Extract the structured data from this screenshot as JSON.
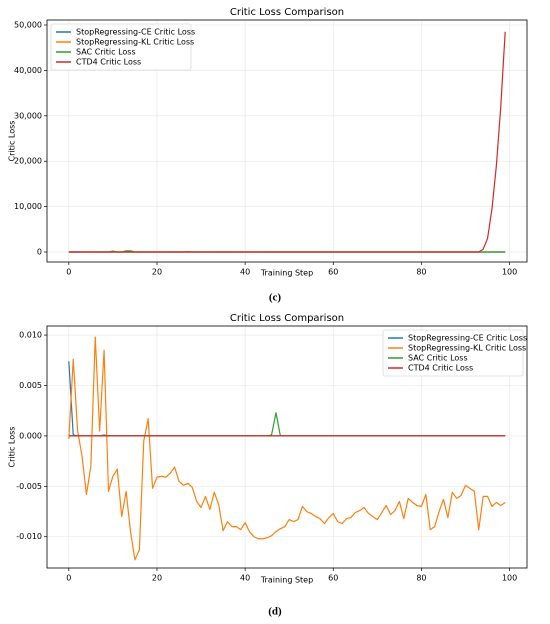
{
  "chart_data": [
    {
      "type": "line",
      "title": "Critic Loss Comparison",
      "xlabel": "Training Step",
      "ylabel": "Critic Loss",
      "caption": "(c)",
      "legend": "upper left",
      "grid": true,
      "xlim": [
        -4.95,
        103.95
      ],
      "xticks": [
        0,
        20,
        40,
        60,
        80,
        100
      ],
      "ylim": [
        -2200,
        51100
      ],
      "yticks": [
        0,
        {
          "value": 10000,
          "label": "10,000"
        },
        {
          "value": 20000,
          "label": "20,000"
        },
        {
          "value": 30000,
          "label": "30,000"
        },
        {
          "value": 40000,
          "label": "40,000"
        },
        {
          "value": 50000,
          "label": "50,000"
        }
      ],
      "x": [
        0,
        1,
        2,
        3,
        4,
        5,
        6,
        7,
        8,
        9,
        10,
        11,
        12,
        13,
        14,
        15,
        16,
        17,
        18,
        19,
        20,
        21,
        22,
        23,
        24,
        25,
        26,
        27,
        28,
        29,
        30,
        31,
        32,
        33,
        34,
        35,
        36,
        37,
        38,
        39,
        40,
        41,
        42,
        43,
        44,
        45,
        46,
        47,
        48,
        49,
        50,
        51,
        52,
        53,
        54,
        55,
        56,
        57,
        58,
        59,
        60,
        61,
        62,
        63,
        64,
        65,
        66,
        67,
        68,
        69,
        70,
        71,
        72,
        73,
        74,
        75,
        76,
        77,
        78,
        79,
        80,
        81,
        82,
        83,
        84,
        85,
        86,
        87,
        88,
        89,
        90,
        91,
        92,
        93,
        94,
        95,
        96,
        97,
        98,
        99
      ],
      "series": [
        {
          "name": "StopRegressing-CE Critic Loss",
          "color": "#1f77b4",
          "values": [
            0,
            0,
            0,
            0,
            0,
            0,
            0,
            0,
            0,
            0,
            0,
            0,
            0,
            0,
            0,
            0,
            0,
            0,
            0,
            0,
            0,
            0,
            0,
            0,
            0,
            0,
            0,
            0,
            0,
            0,
            0,
            0,
            0,
            0,
            0,
            0,
            0,
            0,
            0,
            0,
            0,
            0,
            0,
            0,
            0,
            0,
            0,
            0,
            0,
            0,
            0,
            0,
            0,
            0,
            0,
            0,
            0,
            0,
            0,
            0,
            0,
            0,
            0,
            0,
            0,
            0,
            0,
            0,
            0,
            0,
            0,
            0,
            0,
            0,
            0,
            0,
            0,
            0,
            0,
            0,
            0,
            0,
            0,
            0,
            0,
            0,
            0,
            0,
            0,
            0,
            0,
            0,
            0,
            0,
            0,
            0,
            0,
            0,
            0,
            0
          ]
        },
        {
          "name": "StopRegressing-KL Critic Loss",
          "color": "#ff7f0e",
          "values": [
            0,
            0,
            0,
            0,
            0,
            0,
            0,
            0,
            0,
            0,
            0,
            0,
            0,
            0,
            0,
            0,
            0,
            0,
            0,
            0,
            0,
            0,
            0,
            0,
            0,
            0,
            0,
            100,
            0,
            0,
            0,
            0,
            0,
            0,
            0,
            0,
            0,
            0,
            0,
            0,
            0,
            0,
            0,
            0,
            0,
            0,
            0,
            0,
            0,
            0,
            0,
            0,
            0,
            0,
            0,
            0,
            0,
            0,
            0,
            0,
            0,
            0,
            0,
            0,
            0,
            0,
            0,
            0,
            0,
            0,
            0,
            0,
            0,
            0,
            0,
            0,
            0,
            0,
            0,
            0,
            0,
            0,
            0,
            0,
            0,
            0,
            0,
            0,
            0,
            0,
            0,
            0,
            0,
            0,
            0,
            0,
            0,
            0,
            0,
            0
          ]
        },
        {
          "name": "SAC Critic Loss",
          "color": "#2ca02c",
          "values": [
            0,
            0,
            0,
            0,
            0,
            0,
            0,
            0,
            0,
            0,
            200,
            0,
            0,
            250,
            250,
            0,
            0,
            0,
            0,
            0,
            0,
            0,
            0,
            0,
            0,
            0,
            0,
            0,
            0,
            0,
            0,
            0,
            0,
            0,
            0,
            0,
            0,
            0,
            0,
            0,
            0,
            0,
            0,
            0,
            0,
            0,
            0,
            0,
            0,
            0,
            0,
            0,
            0,
            0,
            0,
            0,
            0,
            0,
            0,
            0,
            0,
            0,
            0,
            0,
            0,
            0,
            0,
            0,
            0,
            0,
            0,
            0,
            0,
            0,
            0,
            0,
            0,
            0,
            0,
            0,
            0,
            0,
            0,
            0,
            0,
            0,
            0,
            0,
            0,
            0,
            0,
            0,
            0,
            0,
            0,
            0,
            0,
            0,
            0,
            0
          ]
        },
        {
          "name": "CTD4 Critic Loss",
          "color": "#d62728",
          "values": [
            0,
            0,
            0,
            0,
            0,
            0,
            0,
            0,
            0,
            0,
            0,
            0,
            0,
            0,
            0,
            0,
            0,
            0,
            0,
            0,
            0,
            0,
            0,
            0,
            0,
            0,
            0,
            0,
            0,
            0,
            0,
            0,
            0,
            0,
            0,
            0,
            0,
            0,
            0,
            0,
            0,
            0,
            0,
            0,
            0,
            0,
            0,
            0,
            0,
            0,
            0,
            0,
            0,
            0,
            0,
            0,
            0,
            0,
            0,
            0,
            0,
            0,
            0,
            0,
            0,
            0,
            0,
            0,
            0,
            0,
            0,
            0,
            0,
            0,
            0,
            0,
            0,
            0,
            0,
            0,
            0,
            0,
            0,
            0,
            0,
            0,
            0,
            0,
            0,
            0,
            0,
            0,
            0,
            0,
            600,
            3000,
            9500,
            19000,
            32000,
            48500
          ]
        }
      ]
    },
    {
      "type": "line",
      "title": "Critic Loss Comparison",
      "xlabel": "Training Step",
      "ylabel": "Critic Loss",
      "caption": "(d)",
      "legend": "upper right",
      "grid": true,
      "xlim": [
        -4.95,
        103.95
      ],
      "xticks": [
        0,
        20,
        40,
        60,
        80,
        100
      ],
      "ylim": [
        -0.0131,
        0.0109
      ],
      "yticks": [
        {
          "value": -0.01,
          "label": "-0.010"
        },
        {
          "value": -0.005,
          "label": "-0.005"
        },
        {
          "value": 0,
          "label": "0.000"
        },
        {
          "value": 0.005,
          "label": "0.005"
        },
        {
          "value": 0.01,
          "label": "0.010"
        }
      ],
      "x": [
        0,
        1,
        2,
        3,
        4,
        5,
        6,
        7,
        8,
        9,
        10,
        11,
        12,
        13,
        14,
        15,
        16,
        17,
        18,
        19,
        20,
        21,
        22,
        23,
        24,
        25,
        26,
        27,
        28,
        29,
        30,
        31,
        32,
        33,
        34,
        35,
        36,
        37,
        38,
        39,
        40,
        41,
        42,
        43,
        44,
        45,
        46,
        47,
        48,
        49,
        50,
        51,
        52,
        53,
        54,
        55,
        56,
        57,
        58,
        59,
        60,
        61,
        62,
        63,
        64,
        65,
        66,
        67,
        68,
        69,
        70,
        71,
        72,
        73,
        74,
        75,
        76,
        77,
        78,
        79,
        80,
        81,
        82,
        83,
        84,
        85,
        86,
        87,
        88,
        89,
        90,
        91,
        92,
        93,
        94,
        95,
        96,
        97,
        98,
        99
      ],
      "series": [
        {
          "name": "StopRegressing-CE Critic Loss",
          "color": "#1f77b4",
          "values": [
            0.0074,
            0.0001,
            0,
            0,
            0,
            0,
            0,
            0,
            0,
            0,
            0,
            0,
            0,
            0,
            0,
            0,
            0,
            0,
            0,
            0,
            0,
            0,
            0,
            0,
            0,
            0,
            0,
            0,
            0,
            0,
            0,
            0,
            0,
            0,
            0,
            0,
            0,
            0,
            0,
            0,
            0,
            0,
            0,
            0,
            0,
            0,
            0,
            0,
            0,
            0,
            0,
            0,
            0,
            0,
            0,
            0,
            0,
            0,
            0,
            0,
            0,
            0,
            0,
            0,
            0,
            0,
            0,
            0,
            0,
            0,
            0,
            0,
            0,
            0,
            0,
            0,
            0,
            0,
            0,
            0,
            0,
            0,
            0,
            0,
            0,
            0,
            0,
            0,
            0,
            0,
            0,
            0,
            0,
            0,
            0,
            0,
            0,
            0,
            0,
            0
          ]
        },
        {
          "name": "StopRegressing-KL Critic Loss",
          "color": "#ff7f0e",
          "values": [
            -0.0003,
            0.0076,
            0.0005,
            -0.002,
            -0.0058,
            -0.003,
            0.0098,
            0.0005,
            0.0085,
            -0.0055,
            -0.004,
            -0.0033,
            -0.008,
            -0.0055,
            -0.0095,
            -0.0123,
            -0.0113,
            -0.0005,
            0.0017,
            -0.0052,
            -0.0041,
            -0.004,
            -0.0041,
            -0.0037,
            -0.0031,
            -0.0045,
            -0.0049,
            -0.0047,
            -0.0051,
            -0.0065,
            -0.0071,
            -0.006,
            -0.0073,
            -0.0056,
            -0.0068,
            -0.0094,
            -0.0085,
            -0.009,
            -0.009,
            -0.0093,
            -0.0086,
            -0.0095,
            -0.01,
            -0.0102,
            -0.0102,
            -0.0101,
            -0.0099,
            -0.0095,
            -0.0092,
            -0.009,
            -0.0083,
            -0.0085,
            -0.0083,
            -0.007,
            -0.0075,
            -0.0077,
            -0.008,
            -0.0082,
            -0.0087,
            -0.0081,
            -0.0077,
            -0.0085,
            -0.0087,
            -0.0082,
            -0.0081,
            -0.0076,
            -0.0074,
            -0.0071,
            -0.0077,
            -0.008,
            -0.0083,
            -0.0076,
            -0.0069,
            -0.0078,
            -0.0074,
            -0.0065,
            -0.0082,
            -0.0062,
            -0.0066,
            -0.0069,
            -0.007,
            -0.0058,
            -0.0093,
            -0.009,
            -0.0075,
            -0.0063,
            -0.0081,
            -0.0056,
            -0.0062,
            -0.0059,
            -0.0049,
            -0.0052,
            -0.0055,
            -0.0093,
            -0.006,
            -0.006,
            -0.007,
            -0.0066,
            -0.0069,
            -0.0066
          ]
        },
        {
          "name": "SAC Critic Loss",
          "color": "#2ca02c",
          "values": [
            0,
            0,
            0,
            0,
            0,
            0,
            0,
            0,
            0.0001,
            0,
            0,
            0,
            0,
            0,
            0,
            0,
            0,
            0,
            0,
            0,
            0,
            0,
            0,
            0,
            0,
            0,
            0,
            0,
            0,
            0,
            0,
            0,
            0,
            0,
            0,
            0,
            0,
            0,
            0,
            0,
            0,
            0,
            0,
            0,
            0,
            0,
            0.0001,
            0.0023,
            0,
            0,
            0,
            0,
            0,
            0,
            0,
            0,
            0,
            0,
            0,
            0,
            0,
            0,
            0,
            0,
            0,
            0,
            0,
            0,
            0,
            0,
            0,
            0,
            0,
            0,
            0,
            0,
            0,
            0,
            0,
            0,
            0,
            0,
            0,
            0,
            0,
            0,
            0,
            0,
            0,
            0,
            0,
            0,
            0,
            0,
            0,
            0,
            0,
            0,
            0,
            0
          ]
        },
        {
          "name": "CTD4 Critic Loss",
          "color": "#d62728",
          "values": [
            0,
            0,
            0,
            0,
            0,
            0,
            0,
            0,
            0,
            0,
            0,
            0,
            0,
            0,
            0,
            0,
            0,
            0,
            0,
            0,
            0,
            0,
            0,
            0,
            0,
            0,
            0,
            0,
            0,
            0,
            0,
            0,
            0,
            0,
            0,
            0,
            0,
            0,
            0,
            0,
            0,
            0,
            0,
            0,
            0,
            0,
            0,
            0,
            0,
            0,
            0,
            0,
            0,
            0,
            0,
            0,
            0,
            0,
            0,
            0,
            0,
            0,
            0,
            0,
            0,
            0,
            0,
            0,
            0,
            0,
            0,
            0,
            0,
            0,
            0,
            0,
            0,
            0,
            0,
            0,
            0,
            0,
            0,
            0,
            0,
            0,
            0,
            0,
            0,
            0,
            0,
            0,
            0,
            0,
            0,
            0,
            0,
            0,
            0,
            0
          ]
        }
      ]
    }
  ]
}
